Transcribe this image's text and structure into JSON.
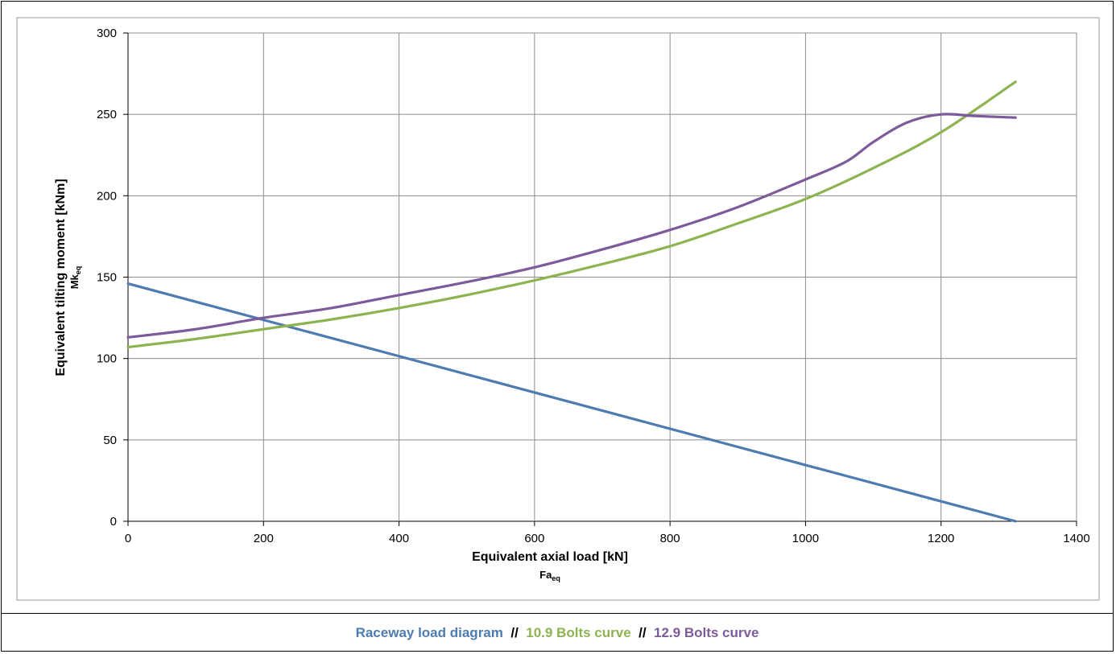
{
  "colors": {
    "raceway": "#4E7BB0",
    "bolts109": "#8DB451",
    "bolts129": "#7D5A9A",
    "grid": "#8C8C8C"
  },
  "legend": {
    "raceway_label": "Raceway load diagram",
    "separator": "//",
    "bolts109_label": "10.9 Bolts curve",
    "bolts129_label": "12.9 Bolts curve"
  },
  "chart_data": {
    "type": "line",
    "xlabel": "Equivalent axial load [kN]",
    "xlabel_symbol": "Fa",
    "xlabel_subscript": "eq",
    "ylabel": "Equivalent tilting moment [kNm]",
    "ylabel_symbol": "Mk",
    "ylabel_subscript": "eq",
    "xlim": [
      0,
      1400
    ],
    "ylim": [
      0,
      300
    ],
    "xticks": [
      0,
      200,
      400,
      600,
      800,
      1000,
      1200,
      1400
    ],
    "yticks": [
      0,
      50,
      100,
      150,
      200,
      250,
      300
    ],
    "grid": true,
    "series": [
      {
        "name": "Raceway load diagram",
        "color_key": "raceway",
        "x": [
          0,
          1310
        ],
        "y": [
          146,
          0
        ]
      },
      {
        "name": "10.9 Bolts curve",
        "color_key": "bolts109",
        "x": [
          0,
          100,
          200,
          300,
          400,
          500,
          600,
          700,
          800,
          900,
          1000,
          1100,
          1200,
          1310
        ],
        "y": [
          107,
          112,
          118,
          124,
          131,
          139,
          148,
          158,
          169,
          183,
          198,
          217,
          239,
          270
        ]
      },
      {
        "name": "12.9 Bolts curve",
        "color_key": "bolts129",
        "x": [
          0,
          100,
          200,
          300,
          400,
          500,
          600,
          700,
          800,
          900,
          1000,
          1060,
          1100,
          1150,
          1200,
          1250,
          1310
        ],
        "y": [
          113,
          118,
          125,
          131,
          139,
          147,
          156,
          167,
          179,
          193,
          210,
          221,
          233,
          245,
          250,
          249,
          248
        ]
      }
    ]
  }
}
